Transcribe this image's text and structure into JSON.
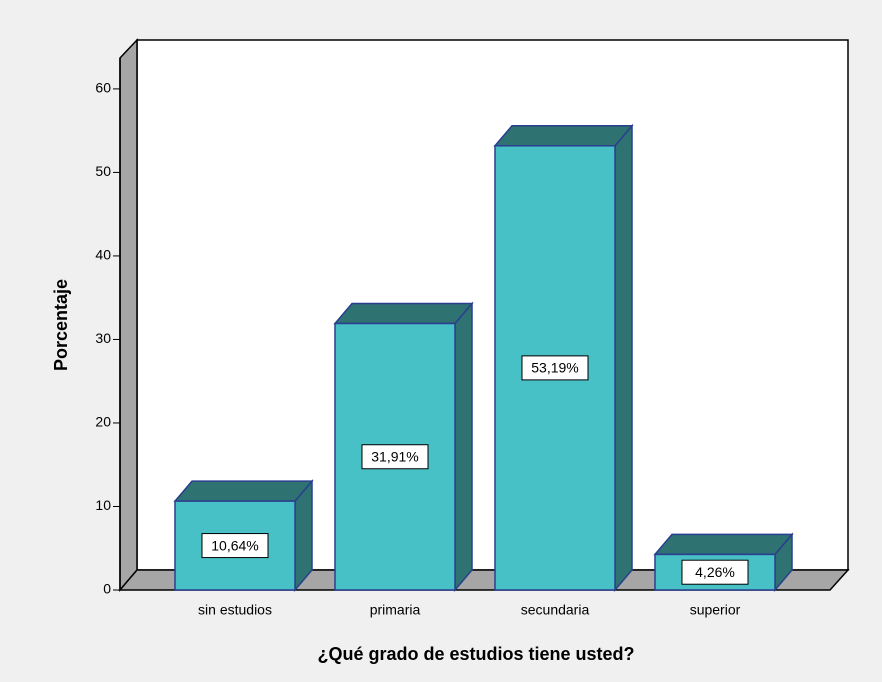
{
  "chart_data": {
    "type": "bar3d",
    "xlabel": "¿Qué grado de estudios tiene usted?",
    "ylabel": "Porcentaje",
    "categories": [
      "sin estudios",
      "primaria",
      "secundaria",
      "superior"
    ],
    "values": [
      10.64,
      31.91,
      53.19,
      4.26
    ],
    "value_labels": [
      "10,64%",
      "31,91%",
      "53,19%",
      "4,26%"
    ],
    "color": "#48c1c6",
    "ylim": [
      0,
      63.7
    ],
    "yticks": [
      0,
      10,
      20,
      30,
      40,
      50,
      60
    ]
  }
}
